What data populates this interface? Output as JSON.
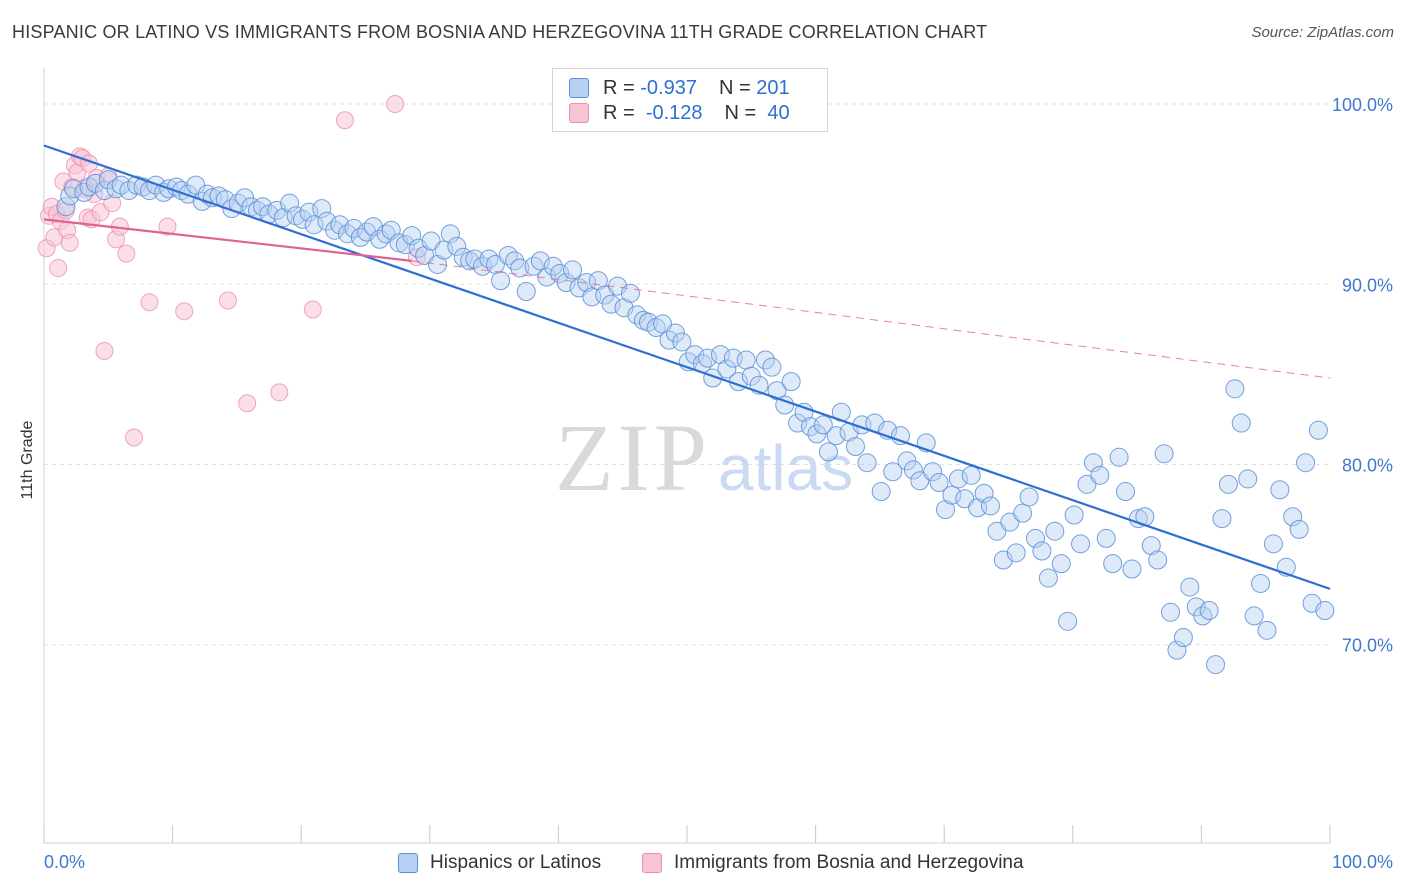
{
  "title": "HISPANIC OR LATINO VS IMMIGRANTS FROM BOSNIA AND HERZEGOVINA 11TH GRADE CORRELATION CHART",
  "source": "Source: ZipAtlas.com",
  "watermark": {
    "zip": "ZIP",
    "atlas": "atlas"
  },
  "colors": {
    "blue": "#5b8fd8",
    "blue_fill": "#b8d0f2",
    "blue_line": "#2e6fd2",
    "pink": "#ef8fb0",
    "pink_fill": "#f7c4d6",
    "pink_line": "#e0628f",
    "tick_label": "#3f78cf",
    "grid": "#e0e0e0"
  },
  "legend": {
    "rows": [
      {
        "r_label": "R =",
        "r_value": "-0.937",
        "n_label": "N =",
        "n_value": "201"
      },
      {
        "r_label": "R =",
        "r_value": "-0.128",
        "n_label": "N =",
        "n_value": "40"
      }
    ]
  },
  "chart_data": {
    "type": "scatter",
    "title": "HISPANIC OR LATINO VS IMMIGRANTS FROM BOSNIA AND HERZEGOVINA 11TH GRADE CORRELATION CHART",
    "xlabel": "",
    "ylabel": "11th Grade",
    "xlim": [
      0,
      100
    ],
    "ylim": [
      59,
      102
    ],
    "x_tick_labels": [
      "0.0%",
      "100.0%"
    ],
    "y_ticks": [
      100,
      90,
      80,
      70
    ],
    "y_tick_labels": [
      "100.0%",
      "90.0%",
      "80.0%",
      "70.0%"
    ],
    "grid": true,
    "legend_position": "top-center",
    "series": [
      {
        "name": "Hispanics or Latinos",
        "R": -0.937,
        "N": 201,
        "trend": {
          "x": [
            0,
            100
          ],
          "y": [
            97.7,
            73.1
          ]
        },
        "points": [
          [
            1.7,
            94.3
          ],
          [
            2.0,
            94.9
          ],
          [
            2.3,
            95.3
          ],
          [
            3.1,
            95.1
          ],
          [
            3.5,
            95.4
          ],
          [
            4.0,
            95.6
          ],
          [
            4.7,
            95.2
          ],
          [
            5.0,
            95.8
          ],
          [
            5.6,
            95.3
          ],
          [
            6.0,
            95.5
          ],
          [
            6.6,
            95.2
          ],
          [
            7.2,
            95.5
          ],
          [
            7.7,
            95.4
          ],
          [
            8.2,
            95.2
          ],
          [
            8.7,
            95.5
          ],
          [
            9.3,
            95.1
          ],
          [
            9.7,
            95.3
          ],
          [
            10.3,
            95.4
          ],
          [
            10.7,
            95.2
          ],
          [
            11.2,
            95.0
          ],
          [
            11.8,
            95.5
          ],
          [
            12.3,
            94.6
          ],
          [
            12.7,
            95.0
          ],
          [
            13.1,
            94.8
          ],
          [
            13.6,
            94.9
          ],
          [
            14.1,
            94.7
          ],
          [
            14.6,
            94.2
          ],
          [
            15.1,
            94.5
          ],
          [
            15.6,
            94.8
          ],
          [
            16.1,
            94.3
          ],
          [
            16.6,
            94.1
          ],
          [
            17.0,
            94.3
          ],
          [
            17.5,
            93.9
          ],
          [
            18.1,
            94.1
          ],
          [
            18.6,
            93.7
          ],
          [
            19.1,
            94.5
          ],
          [
            19.6,
            93.8
          ],
          [
            20.1,
            93.6
          ],
          [
            20.6,
            94.0
          ],
          [
            21.0,
            93.3
          ],
          [
            21.6,
            94.2
          ],
          [
            22.0,
            93.5
          ],
          [
            22.6,
            93.0
          ],
          [
            23.0,
            93.3
          ],
          [
            23.6,
            92.8
          ],
          [
            24.1,
            93.1
          ],
          [
            24.6,
            92.6
          ],
          [
            25.1,
            92.9
          ],
          [
            25.6,
            93.2
          ],
          [
            26.1,
            92.5
          ],
          [
            26.6,
            92.8
          ],
          [
            27.0,
            93.0
          ],
          [
            27.6,
            92.3
          ],
          [
            28.1,
            92.2
          ],
          [
            28.6,
            92.7
          ],
          [
            29.1,
            92.0
          ],
          [
            29.6,
            91.6
          ],
          [
            30.1,
            92.4
          ],
          [
            30.6,
            91.1
          ],
          [
            31.1,
            91.9
          ],
          [
            31.6,
            92.8
          ],
          [
            32.1,
            92.1
          ],
          [
            32.6,
            91.5
          ],
          [
            33.1,
            91.3
          ],
          [
            33.5,
            91.4
          ],
          [
            34.1,
            91.0
          ],
          [
            34.6,
            91.4
          ],
          [
            35.1,
            91.1
          ],
          [
            35.5,
            90.2
          ],
          [
            36.1,
            91.6
          ],
          [
            36.6,
            91.3
          ],
          [
            37.0,
            90.9
          ],
          [
            37.5,
            89.6
          ],
          [
            38.1,
            91.0
          ],
          [
            38.6,
            91.3
          ],
          [
            39.1,
            90.4
          ],
          [
            39.6,
            91.0
          ],
          [
            40.1,
            90.6
          ],
          [
            40.6,
            90.1
          ],
          [
            41.1,
            90.8
          ],
          [
            41.6,
            89.8
          ],
          [
            42.2,
            90.1
          ],
          [
            42.6,
            89.3
          ],
          [
            43.1,
            90.2
          ],
          [
            43.6,
            89.4
          ],
          [
            44.1,
            88.9
          ],
          [
            44.6,
            89.9
          ],
          [
            45.1,
            88.7
          ],
          [
            45.6,
            89.5
          ],
          [
            46.1,
            88.3
          ],
          [
            46.6,
            88.0
          ],
          [
            47.0,
            87.9
          ],
          [
            47.6,
            87.6
          ],
          [
            48.1,
            87.8
          ],
          [
            48.6,
            86.9
          ],
          [
            49.1,
            87.3
          ],
          [
            49.6,
            86.8
          ],
          [
            50.1,
            85.7
          ],
          [
            50.6,
            86.1
          ],
          [
            51.2,
            85.6
          ],
          [
            51.6,
            85.9
          ],
          [
            52.0,
            84.8
          ],
          [
            52.6,
            86.1
          ],
          [
            53.1,
            85.3
          ],
          [
            53.6,
            85.9
          ],
          [
            54.0,
            84.6
          ],
          [
            54.6,
            85.8
          ],
          [
            55.0,
            84.9
          ],
          [
            55.6,
            84.4
          ],
          [
            56.1,
            85.8
          ],
          [
            56.6,
            85.4
          ],
          [
            57.0,
            84.1
          ],
          [
            57.6,
            83.3
          ],
          [
            58.1,
            84.6
          ],
          [
            58.6,
            82.3
          ],
          [
            59.1,
            82.9
          ],
          [
            59.6,
            82.1
          ],
          [
            60.1,
            81.7
          ],
          [
            60.6,
            82.2
          ],
          [
            61.0,
            80.7
          ],
          [
            61.6,
            81.6
          ],
          [
            62.0,
            82.9
          ],
          [
            62.6,
            81.8
          ],
          [
            63.1,
            81.0
          ],
          [
            63.6,
            82.2
          ],
          [
            64.0,
            80.1
          ],
          [
            64.6,
            82.3
          ],
          [
            65.1,
            78.5
          ],
          [
            65.6,
            81.9
          ],
          [
            66.0,
            79.6
          ],
          [
            66.6,
            81.6
          ],
          [
            67.1,
            80.2
          ],
          [
            67.6,
            79.7
          ],
          [
            68.1,
            79.1
          ],
          [
            68.6,
            81.2
          ],
          [
            69.1,
            79.6
          ],
          [
            69.6,
            79.0
          ],
          [
            70.1,
            77.5
          ],
          [
            70.6,
            78.3
          ],
          [
            71.1,
            79.2
          ],
          [
            71.6,
            78.1
          ],
          [
            72.1,
            79.4
          ],
          [
            72.6,
            77.6
          ],
          [
            73.1,
            78.4
          ],
          [
            73.6,
            77.7
          ],
          [
            74.1,
            76.3
          ],
          [
            74.6,
            74.7
          ],
          [
            75.1,
            76.8
          ],
          [
            75.6,
            75.1
          ],
          [
            76.1,
            77.3
          ],
          [
            76.6,
            78.2
          ],
          [
            77.1,
            75.9
          ],
          [
            77.6,
            75.2
          ],
          [
            78.1,
            73.7
          ],
          [
            78.6,
            76.3
          ],
          [
            79.1,
            74.5
          ],
          [
            79.6,
            71.3
          ],
          [
            80.1,
            77.2
          ],
          [
            80.6,
            75.6
          ],
          [
            81.1,
            78.9
          ],
          [
            81.6,
            80.1
          ],
          [
            82.1,
            79.4
          ],
          [
            82.6,
            75.9
          ],
          [
            83.1,
            74.5
          ],
          [
            83.6,
            80.4
          ],
          [
            84.1,
            78.5
          ],
          [
            84.6,
            74.2
          ],
          [
            85.1,
            77.0
          ],
          [
            85.6,
            77.1
          ],
          [
            86.1,
            75.5
          ],
          [
            86.6,
            74.7
          ],
          [
            87.1,
            80.6
          ],
          [
            87.6,
            71.8
          ],
          [
            88.1,
            69.7
          ],
          [
            88.6,
            70.4
          ],
          [
            89.1,
            73.2
          ],
          [
            89.6,
            72.1
          ],
          [
            90.1,
            71.6
          ],
          [
            90.6,
            71.9
          ],
          [
            91.1,
            68.9
          ],
          [
            91.6,
            77.0
          ],
          [
            92.1,
            78.9
          ],
          [
            92.6,
            84.2
          ],
          [
            93.1,
            82.3
          ],
          [
            93.6,
            79.2
          ],
          [
            94.1,
            71.6
          ],
          [
            94.6,
            73.4
          ],
          [
            95.1,
            70.8
          ],
          [
            95.6,
            75.6
          ],
          [
            96.1,
            78.6
          ],
          [
            96.6,
            74.3
          ],
          [
            97.1,
            77.1
          ],
          [
            97.6,
            76.4
          ],
          [
            98.1,
            80.1
          ],
          [
            98.6,
            72.3
          ],
          [
            99.1,
            81.9
          ],
          [
            99.6,
            71.9
          ]
        ]
      },
      {
        "name": "Immigrants from Bosnia and Herzegovina",
        "R": -0.128,
        "N": 40,
        "trend": {
          "x": [
            0,
            28.6
          ],
          "y": [
            93.6,
            91.3
          ]
        },
        "trend_extension": {
          "x": [
            28.6,
            100
          ],
          "y": [
            91.3,
            84.8
          ]
        },
        "points": [
          [
            0.2,
            92.0
          ],
          [
            0.4,
            93.8
          ],
          [
            0.6,
            94.3
          ],
          [
            0.8,
            92.6
          ],
          [
            1.0,
            93.9
          ],
          [
            1.1,
            90.9
          ],
          [
            1.3,
            93.5
          ],
          [
            1.5,
            95.7
          ],
          [
            1.7,
            94.1
          ],
          [
            1.8,
            93.0
          ],
          [
            2.0,
            92.3
          ],
          [
            2.2,
            95.4
          ],
          [
            2.4,
            96.6
          ],
          [
            2.6,
            96.2
          ],
          [
            2.8,
            97.1
          ],
          [
            3.0,
            97.0
          ],
          [
            3.2,
            95.3
          ],
          [
            3.4,
            93.7
          ],
          [
            3.5,
            96.7
          ],
          [
            3.7,
            93.6
          ],
          [
            3.9,
            95.0
          ],
          [
            4.1,
            95.9
          ],
          [
            4.4,
            94.0
          ],
          [
            4.7,
            86.3
          ],
          [
            5.0,
            96.0
          ],
          [
            5.3,
            94.5
          ],
          [
            5.6,
            92.5
          ],
          [
            5.9,
            93.2
          ],
          [
            6.4,
            91.7
          ],
          [
            7.0,
            81.5
          ],
          [
            8.2,
            89.0
          ],
          [
            9.6,
            93.2
          ],
          [
            10.9,
            88.5
          ],
          [
            14.3,
            89.1
          ],
          [
            15.8,
            83.4
          ],
          [
            18.3,
            84.0
          ],
          [
            20.9,
            88.6
          ],
          [
            23.4,
            99.1
          ],
          [
            27.3,
            100.0
          ],
          [
            29.0,
            91.5
          ]
        ]
      }
    ]
  },
  "bottom_legend": {
    "items": [
      "Hispanics or Latinos",
      "Immigrants from Bosnia and Herzegovina"
    ]
  }
}
